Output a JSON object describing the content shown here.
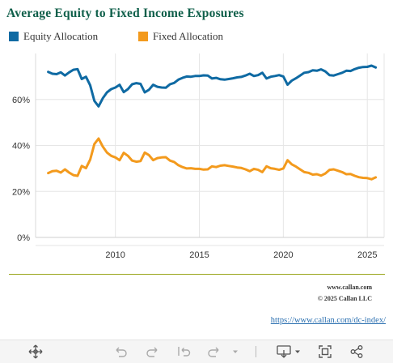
{
  "chart_data": {
    "type": "line",
    "title": "Average Equity to Fixed Income Exposures",
    "xlabel": "",
    "ylabel": "",
    "ylim": [
      0,
      80
    ],
    "xlim": [
      2005.25,
      2026
    ],
    "x_ticks": [
      2010,
      2015,
      2020,
      2025
    ],
    "y_ticks": [
      0,
      20,
      40,
      60
    ],
    "y_tick_labels": [
      "0%",
      "20%",
      "40%",
      "60%"
    ],
    "legend_position": "top",
    "series": [
      {
        "name": "Equity Allocation",
        "color": "#0f6aa3",
        "points": [
          [
            2006.0,
            72
          ],
          [
            2006.25,
            71.2
          ],
          [
            2006.5,
            71
          ],
          [
            2006.75,
            71.8
          ],
          [
            2007.0,
            70.4
          ],
          [
            2007.25,
            71.8
          ],
          [
            2007.5,
            72.9
          ],
          [
            2007.75,
            73.2
          ],
          [
            2008.0,
            68.9
          ],
          [
            2008.25,
            69.9
          ],
          [
            2008.5,
            66.2
          ],
          [
            2008.75,
            59.4
          ],
          [
            2009.0,
            57
          ],
          [
            2009.25,
            60.5
          ],
          [
            2009.5,
            63.1
          ],
          [
            2009.75,
            64.5
          ],
          [
            2010.0,
            65.2
          ],
          [
            2010.25,
            66.4
          ],
          [
            2010.5,
            63.2
          ],
          [
            2010.75,
            64.5
          ],
          [
            2011.0,
            66.6
          ],
          [
            2011.25,
            67.1
          ],
          [
            2011.5,
            66.8
          ],
          [
            2011.75,
            63.1
          ],
          [
            2012.0,
            64.2
          ],
          [
            2012.25,
            66.4
          ],
          [
            2012.5,
            65.5
          ],
          [
            2012.75,
            65.2
          ],
          [
            2013.0,
            65.1
          ],
          [
            2013.25,
            66.6
          ],
          [
            2013.5,
            67.2
          ],
          [
            2013.75,
            68.6
          ],
          [
            2014.0,
            69.4
          ],
          [
            2014.25,
            70
          ],
          [
            2014.5,
            69.9
          ],
          [
            2014.75,
            70.2
          ],
          [
            2015.0,
            70.2
          ],
          [
            2015.25,
            70.5
          ],
          [
            2015.5,
            70.4
          ],
          [
            2015.75,
            69.1
          ],
          [
            2016.0,
            69.4
          ],
          [
            2016.25,
            68.8
          ],
          [
            2016.5,
            68.6
          ],
          [
            2016.75,
            68.9
          ],
          [
            2017.0,
            69.2
          ],
          [
            2017.25,
            69.6
          ],
          [
            2017.5,
            69.8
          ],
          [
            2017.75,
            70.4
          ],
          [
            2018.0,
            71.2
          ],
          [
            2018.25,
            70.2
          ],
          [
            2018.5,
            70.6
          ],
          [
            2018.75,
            71.6
          ],
          [
            2019.0,
            69.1
          ],
          [
            2019.25,
            69.9
          ],
          [
            2019.5,
            70.2
          ],
          [
            2019.75,
            70.6
          ],
          [
            2020.0,
            70
          ],
          [
            2020.25,
            66.4
          ],
          [
            2020.5,
            68.2
          ],
          [
            2020.75,
            69.2
          ],
          [
            2021.0,
            70.4
          ],
          [
            2021.25,
            71.6
          ],
          [
            2021.5,
            71.9
          ],
          [
            2021.75,
            72.7
          ],
          [
            2022.0,
            72.5
          ],
          [
            2022.25,
            73.1
          ],
          [
            2022.5,
            72.2
          ],
          [
            2022.75,
            70.6
          ],
          [
            2023.0,
            70.4
          ],
          [
            2023.25,
            71
          ],
          [
            2023.5,
            71.6
          ],
          [
            2023.75,
            72.5
          ],
          [
            2024.0,
            72.4
          ],
          [
            2024.25,
            73.2
          ],
          [
            2024.5,
            73.8
          ],
          [
            2024.75,
            74.1
          ],
          [
            2025.0,
            74.2
          ],
          [
            2025.25,
            74.7
          ],
          [
            2025.5,
            73.9
          ]
        ]
      },
      {
        "name": "Fixed Allocation",
        "color": "#f39a1d",
        "points": [
          [
            2006.0,
            28
          ],
          [
            2006.25,
            28.8
          ],
          [
            2006.5,
            29
          ],
          [
            2006.75,
            28.2
          ],
          [
            2007.0,
            29.6
          ],
          [
            2007.25,
            28.2
          ],
          [
            2007.5,
            27.1
          ],
          [
            2007.75,
            26.8
          ],
          [
            2008.0,
            31.1
          ],
          [
            2008.25,
            30.1
          ],
          [
            2008.5,
            33.8
          ],
          [
            2008.75,
            40.6
          ],
          [
            2009.0,
            43
          ],
          [
            2009.25,
            39.5
          ],
          [
            2009.5,
            36.9
          ],
          [
            2009.75,
            35.5
          ],
          [
            2010.0,
            34.8
          ],
          [
            2010.25,
            33.6
          ],
          [
            2010.5,
            36.8
          ],
          [
            2010.75,
            35.5
          ],
          [
            2011.0,
            33.4
          ],
          [
            2011.25,
            32.9
          ],
          [
            2011.5,
            33.2
          ],
          [
            2011.75,
            36.9
          ],
          [
            2012.0,
            35.8
          ],
          [
            2012.25,
            33.6
          ],
          [
            2012.5,
            34.5
          ],
          [
            2012.75,
            34.8
          ],
          [
            2013.0,
            34.9
          ],
          [
            2013.25,
            33.4
          ],
          [
            2013.5,
            32.8
          ],
          [
            2013.75,
            31.4
          ],
          [
            2014.0,
            30.6
          ],
          [
            2014.25,
            30
          ],
          [
            2014.5,
            30.1
          ],
          [
            2014.75,
            29.8
          ],
          [
            2015.0,
            29.8
          ],
          [
            2015.25,
            29.5
          ],
          [
            2015.5,
            29.6
          ],
          [
            2015.75,
            30.9
          ],
          [
            2016.0,
            30.6
          ],
          [
            2016.25,
            31.2
          ],
          [
            2016.5,
            31.4
          ],
          [
            2016.75,
            31.1
          ],
          [
            2017.0,
            30.8
          ],
          [
            2017.25,
            30.4
          ],
          [
            2017.5,
            30.2
          ],
          [
            2017.75,
            29.6
          ],
          [
            2018.0,
            28.8
          ],
          [
            2018.25,
            29.8
          ],
          [
            2018.5,
            29.4
          ],
          [
            2018.75,
            28.4
          ],
          [
            2019.0,
            30.9
          ],
          [
            2019.25,
            30.1
          ],
          [
            2019.5,
            29.8
          ],
          [
            2019.75,
            29.4
          ],
          [
            2020.0,
            30
          ],
          [
            2020.25,
            33.6
          ],
          [
            2020.5,
            31.8
          ],
          [
            2020.75,
            30.8
          ],
          [
            2021.0,
            29.6
          ],
          [
            2021.25,
            28.4
          ],
          [
            2021.5,
            28.1
          ],
          [
            2021.75,
            27.3
          ],
          [
            2022.0,
            27.5
          ],
          [
            2022.25,
            26.9
          ],
          [
            2022.5,
            27.8
          ],
          [
            2022.75,
            29.4
          ],
          [
            2023.0,
            29.6
          ],
          [
            2023.25,
            29
          ],
          [
            2023.5,
            28.4
          ],
          [
            2023.75,
            27.5
          ],
          [
            2024.0,
            27.6
          ],
          [
            2024.25,
            26.8
          ],
          [
            2024.5,
            26.2
          ],
          [
            2024.75,
            25.9
          ],
          [
            2025.0,
            25.8
          ],
          [
            2025.25,
            25.3
          ],
          [
            2025.5,
            26.1
          ]
        ]
      }
    ]
  },
  "footer": {
    "site": "www.callan.com",
    "copyright": "© 2025  Callan LLC",
    "link": "https://www.callan.com/dc-index/"
  },
  "colors": {
    "title": "#0f5f4a",
    "rule": "#9aa61c",
    "link": "#2a6fb0",
    "gridline": "#e6e6e6"
  },
  "toolbar": {
    "icons": [
      "move-icon",
      "undo-icon",
      "redo-icon",
      "revert-icon",
      "refresh-icon",
      "dropdown-icon",
      "download-icon",
      "dropdown-icon",
      "fullscreen-icon",
      "share-icon"
    ]
  }
}
